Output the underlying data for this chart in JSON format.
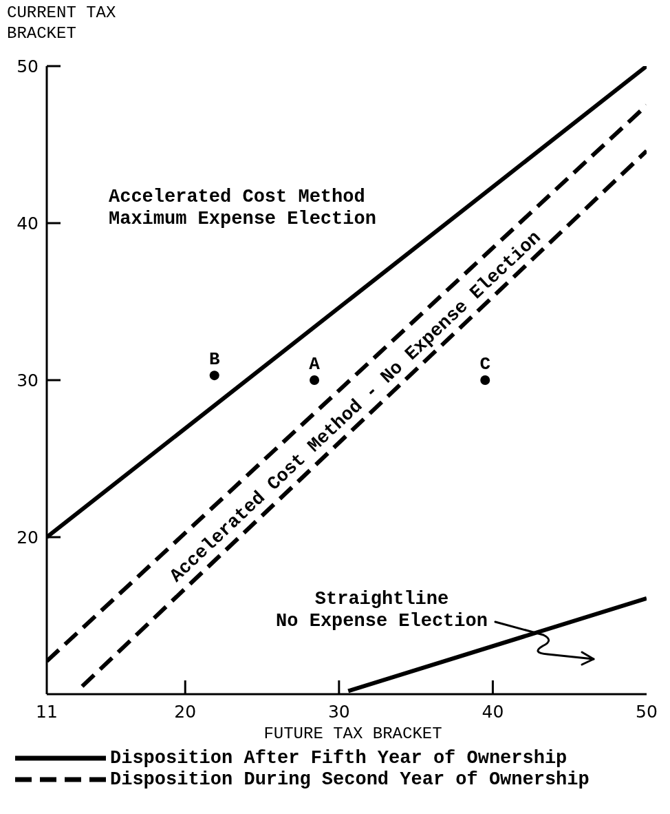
{
  "chart_data": {
    "type": "line",
    "xlabel": "FUTURE TAX BRACKET",
    "ylabel": "CURRENT TAX BRACKET",
    "xlim": [
      11,
      50
    ],
    "ylim": [
      10,
      50
    ],
    "xticks": [
      11,
      20,
      30,
      40,
      50
    ],
    "yticks": [
      20,
      30,
      40,
      50
    ],
    "grid": false,
    "legend": "bottom",
    "series": [
      {
        "name": "Disposition After Fifth Year of Ownership",
        "type": "line",
        "line_style": "solid",
        "color": "#000000",
        "x": [
          11,
          50
        ],
        "values": [
          20,
          50
        ]
      },
      {
        "name": "Disposition During Second Year of Ownership",
        "type": "line",
        "line_style": "dashed",
        "color": "#000000",
        "x": [
          11,
          50
        ],
        "values": [
          12.1,
          47.5
        ]
      },
      {
        "type": "line",
        "line_style": "dashed",
        "color": "#000000",
        "x": [
          13.3,
          50
        ],
        "values": [
          10.5,
          44.6
        ]
      },
      {
        "type": "line",
        "line_style": "solid",
        "color": "#000000",
        "x": [
          30.6,
          50
        ],
        "values": [
          10.2,
          16.1
        ]
      },
      {
        "type": "scatter",
        "marker": "circle",
        "color": "#000000",
        "x": [
          21.9,
          28.4,
          39.5
        ],
        "values": [
          30.3,
          30,
          30
        ]
      }
    ],
    "annotations": [
      "Accelerated Cost Method\nMaximum Expense Election",
      "Accelerated Cost Method - No Expense Election",
      "Straightline\nNo Expense Election",
      {
        "text": "B",
        "x": 21.9,
        "y": 30.3
      },
      {
        "text": "A",
        "x": 28.4,
        "y": 30
      },
      {
        "text": "C",
        "x": 39.5,
        "y": 30
      }
    ]
  }
}
